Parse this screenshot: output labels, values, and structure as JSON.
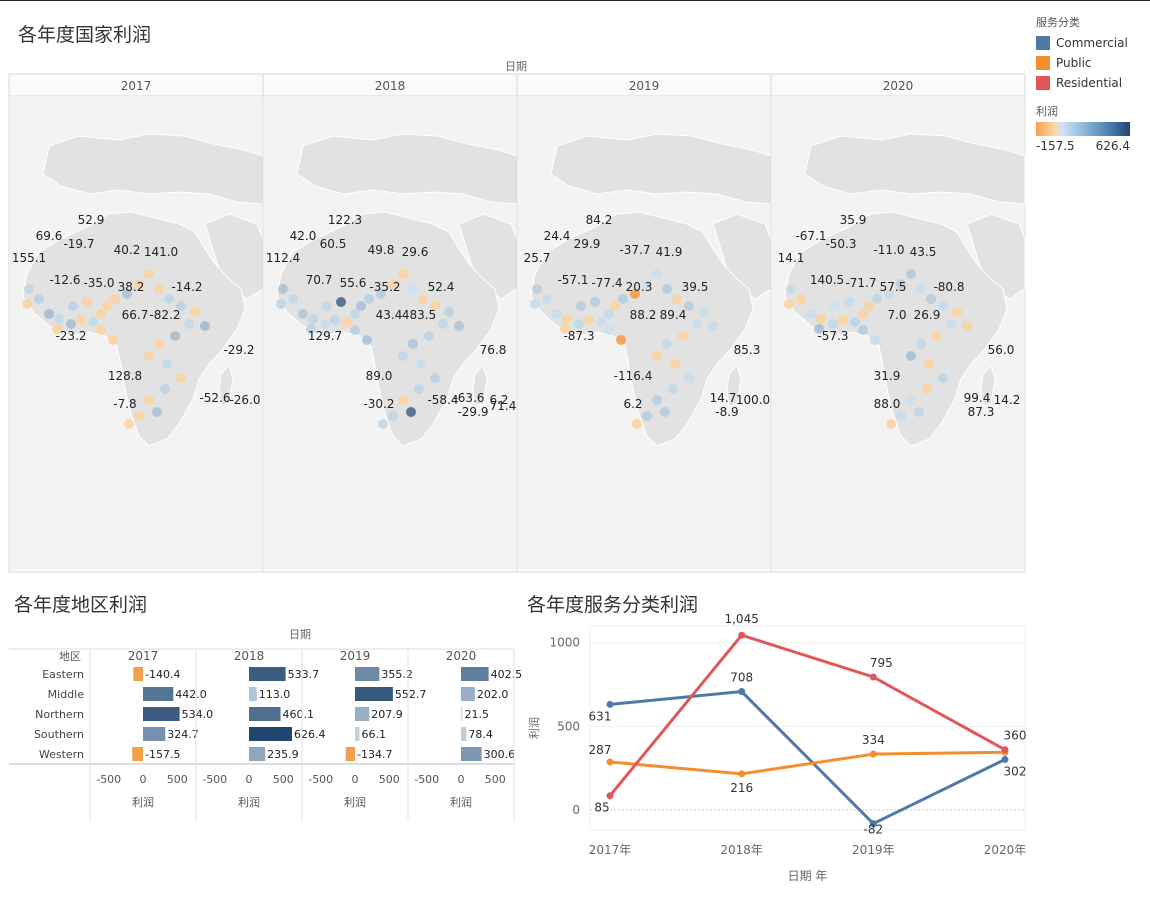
{
  "map_panel": {
    "title": "各年度国家利润",
    "axis_label": "日期",
    "years": [
      "2017",
      "2018",
      "2019",
      "2020"
    ]
  },
  "legend": {
    "category_title": "服务分类",
    "categories": [
      {
        "name": "Commercial",
        "color": "#4e79a7"
      },
      {
        "name": "Public",
        "color": "#f28e2b"
      },
      {
        "name": "Residential",
        "color": "#e15759"
      }
    ],
    "profit_title": "利润",
    "profit_min": "-157.5",
    "profit_max": "626.4"
  },
  "region_panel": {
    "title": "各年度地区利润",
    "axis_label": "日期",
    "row_header": "地区",
    "x_ticks": [
      "-500",
      "0",
      "500"
    ],
    "x_label": "利润"
  },
  "line_panel": {
    "title": "各年度服务分类利润",
    "x_label": "日期 年",
    "y_label": "利润"
  },
  "chart_data": [
    {
      "type": "scatter",
      "title": "各年度国家利润",
      "facets": [
        {
          "year": "2017",
          "labels": [
            "52.9",
            "69.6",
            "-19.7",
            "155.1",
            "40.2",
            "141.0",
            "-12.6",
            "-35.0",
            "38.2",
            "-14.2",
            "66.7",
            "-82.2",
            "-23.2",
            "-29.2",
            "128.8",
            "-7.8",
            "-52.6",
            "-26.0"
          ]
        },
        {
          "year": "2018",
          "labels": [
            "122.3",
            "42.0",
            "60.5",
            "112.4",
            "49.8",
            "29.6",
            "70.7",
            "55.6",
            "-35.2",
            "52.4",
            "43.4",
            "483.5",
            "129.7",
            "76.8",
            "89.0",
            "-30.2",
            "-63.6",
            "6.2",
            "-29.9",
            "-58.4",
            "71.4"
          ]
        },
        {
          "year": "2019",
          "labels": [
            "84.2",
            "24.4",
            "29.9",
            "25.7",
            "-37.7",
            "41.9",
            "-57.1",
            "-77.4",
            "20.3",
            "39.5",
            "88.2",
            "89.4",
            "-87.3",
            "85.3",
            "-116.4",
            "6.2",
            "14.7",
            "100.0",
            "-8.9"
          ]
        },
        {
          "year": "2020",
          "labels": [
            "35.9",
            "-67.1",
            "-50.3",
            "14.1",
            "-11.0",
            "43.5",
            "140.5",
            "-71.7",
            "57.5",
            "-80.8",
            "7.0",
            "26.9",
            "-57.3",
            "56.0",
            "31.9",
            "88.0",
            "99.4",
            "14.2",
            "87.3"
          ]
        }
      ]
    },
    {
      "type": "bar",
      "title": "各年度地区利润",
      "categories": [
        "Eastern",
        "Middle",
        "Northern",
        "Southern",
        "Western"
      ],
      "xlim": [
        -700,
        700
      ],
      "series": [
        {
          "name": "2017",
          "values": [
            -140.4,
            442.0,
            534.0,
            324.7,
            -157.5
          ]
        },
        {
          "name": "2018",
          "values": [
            533.7,
            113.0,
            460.1,
            626.4,
            235.9
          ]
        },
        {
          "name": "2019",
          "values": [
            355.2,
            552.7,
            207.9,
            66.1,
            -134.7
          ]
        },
        {
          "name": "2020",
          "values": [
            402.5,
            202.0,
            21.5,
            78.4,
            300.6
          ]
        }
      ],
      "value_labels": [
        [
          "-140.4",
          "442.0",
          "534.0",
          "324.7",
          "-157.5"
        ],
        [
          "533.7",
          "113.0",
          "460.1",
          "626.4",
          "235.9"
        ],
        [
          "355.2",
          "552.7",
          "207.9",
          "66.1",
          "-134.7"
        ],
        [
          "402.5",
          "202.0",
          "21.5",
          "78.4",
          "300.6"
        ]
      ]
    },
    {
      "type": "line",
      "title": "各年度服务分类利润",
      "categories": [
        "2017年",
        "2018年",
        "2019年",
        "2020年"
      ],
      "ylim": [
        -120,
        1100
      ],
      "y_ticks": [
        "0",
        "500",
        "1000"
      ],
      "series": [
        {
          "name": "Commercial",
          "color": "#4e79a7",
          "values": [
            631,
            708,
            -82,
            302
          ],
          "labels": [
            "631",
            "708",
            "-82",
            "302"
          ]
        },
        {
          "name": "Public",
          "color": "#f28e2b",
          "values": [
            287,
            216,
            334,
            345
          ],
          "labels": [
            "287",
            "216",
            "334",
            ""
          ]
        },
        {
          "name": "Residential",
          "color": "#e15759",
          "values": [
            85,
            1045,
            795,
            360
          ],
          "labels": [
            "85",
            "1,045",
            "795",
            "360"
          ]
        }
      ]
    }
  ]
}
